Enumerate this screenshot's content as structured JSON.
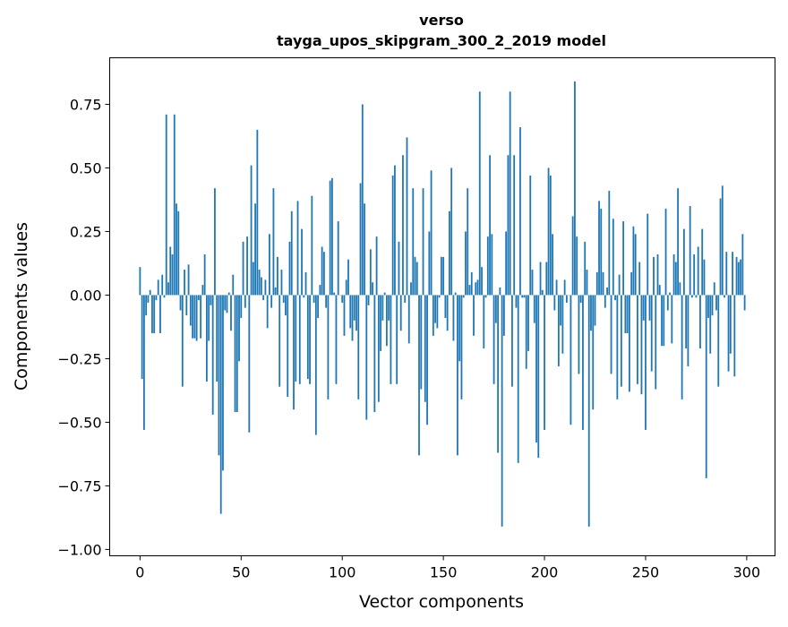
{
  "chart_data": {
    "type": "bar",
    "title_line1": "verso",
    "title_line2": "tayga_upos_skipgram_300_2_2019 model",
    "xlabel": "Vector components",
    "ylabel": "Components values",
    "xlim": [
      -15,
      314
    ],
    "ylim": [
      -1.025,
      0.933
    ],
    "xticks": [
      0,
      50,
      100,
      150,
      200,
      250,
      300
    ],
    "yticks": [
      -1.0,
      -0.75,
      -0.5,
      -0.25,
      0.0,
      0.25,
      0.5,
      0.75
    ],
    "ytick_labels": [
      "−1.00",
      "−0.75",
      "−0.50",
      "−0.25",
      "0.00",
      "0.25",
      "0.50",
      "0.75"
    ],
    "bar_color": "#1f77b4",
    "grid": false,
    "values": [
      0.11,
      -0.33,
      -0.53,
      -0.08,
      -0.03,
      0.02,
      -0.15,
      -0.15,
      -0.02,
      0.06,
      -0.15,
      0.08,
      -0.01,
      0.71,
      0.05,
      0.19,
      0.16,
      0.71,
      0.36,
      0.33,
      -0.06,
      -0.36,
      0.1,
      -0.08,
      0.12,
      -0.12,
      -0.17,
      -0.17,
      -0.18,
      -0.02,
      -0.17,
      0.04,
      0.16,
      -0.34,
      -0.18,
      -0.04,
      -0.47,
      0.42,
      -0.34,
      -0.63,
      -0.86,
      -0.69,
      -0.06,
      -0.07,
      0.01,
      -0.14,
      0.08,
      -0.46,
      -0.46,
      -0.26,
      -0.09,
      0.21,
      -0.05,
      0.23,
      -0.54,
      0.51,
      0.13,
      0.36,
      0.65,
      0.1,
      0.07,
      -0.02,
      0.06,
      -0.13,
      0.24,
      -0.05,
      0.42,
      0.03,
      0.15,
      -0.36,
      0.1,
      -0.03,
      -0.08,
      -0.4,
      0.21,
      0.33,
      -0.45,
      -0.34,
      0.37,
      -0.35,
      0.26,
      -0.01,
      0.09,
      -0.33,
      -0.35,
      0.39,
      -0.03,
      -0.55,
      -0.09,
      0.04,
      0.19,
      0.17,
      -0.05,
      -0.41,
      0.45,
      0.46,
      0.01,
      -0.35,
      0.29,
      0.0,
      -0.03,
      -0.16,
      0.06,
      0.14,
      -0.13,
      -0.18,
      -0.1,
      -0.14,
      -0.41,
      0.44,
      0.75,
      0.36,
      -0.49,
      -0.04,
      0.18,
      0.05,
      -0.46,
      0.23,
      -0.42,
      -0.22,
      -0.1,
      0.01,
      -0.2,
      -0.1,
      -0.35,
      0.47,
      0.51,
      -0.35,
      0.21,
      -0.14,
      0.55,
      -0.03,
      0.62,
      -0.19,
      0.05,
      0.42,
      0.15,
      0.13,
      -0.63,
      -0.37,
      0.42,
      -0.42,
      -0.51,
      0.25,
      0.49,
      -0.16,
      -0.11,
      -0.13,
      -0.01,
      0.15,
      0.15,
      -0.09,
      -0.14,
      0.33,
      0.5,
      -0.18,
      0.01,
      -0.63,
      -0.26,
      -0.41,
      -0.01,
      0.25,
      0.42,
      0.04,
      0.09,
      -0.16,
      0.05,
      0.06,
      0.8,
      0.11,
      -0.21,
      -0.01,
      0.23,
      0.55,
      0.24,
      -0.35,
      -0.11,
      -0.62,
      0.03,
      -0.91,
      -0.16,
      0.25,
      0.55,
      0.8,
      -0.36,
      0.55,
      -0.05,
      -0.66,
      0.66,
      -0.01,
      -0.01,
      -0.29,
      -0.22,
      0.47,
      0.1,
      -0.11,
      -0.58,
      -0.64,
      0.13,
      0.02,
      -0.53,
      0.13,
      0.5,
      0.47,
      0.24,
      -0.06,
      0.06,
      -0.28,
      -0.12,
      -0.23,
      0.06,
      -0.03,
      0.0,
      -0.51,
      0.31,
      0.84,
      0.23,
      -0.31,
      -0.03,
      -0.53,
      0.21,
      0.1,
      -0.91,
      -0.14,
      -0.45,
      -0.12,
      0.09,
      0.37,
      0.34,
      0.09,
      -0.05,
      0.03,
      0.41,
      -0.31,
      0.3,
      -0.02,
      -0.41,
      0.08,
      -0.36,
      0.29,
      -0.15,
      -0.15,
      -0.38,
      0.09,
      0.27,
      0.24,
      -0.35,
      0.13,
      -0.39,
      -0.1,
      -0.53,
      0.32,
      -0.1,
      -0.3,
      0.15,
      -0.37,
      0.16,
      0.04,
      -0.2,
      -0.2,
      0.34,
      -0.06,
      0.01,
      -0.19,
      0.16,
      0.13,
      0.42,
      0.05,
      -0.41,
      0.26,
      -0.21,
      -0.28,
      0.35,
      -0.01,
      0.16,
      -0.01,
      0.19,
      -0.21,
      0.26,
      0.14,
      -0.72,
      -0.09,
      -0.23,
      -0.08,
      0.05,
      -0.06,
      -0.36,
      0.38,
      0.43,
      -0.01,
      0.17,
      -0.3,
      -0.23,
      0.17,
      -0.32,
      0.15,
      0.13,
      0.14,
      0.24,
      -0.06
    ]
  }
}
